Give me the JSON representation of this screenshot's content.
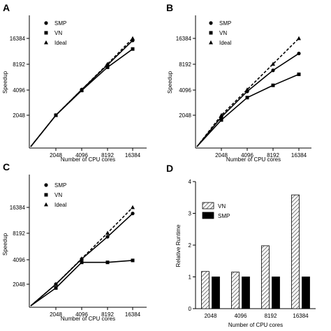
{
  "chart_data": [
    {
      "panel": "A",
      "type": "line",
      "x": [
        2048,
        4096,
        8192,
        16384
      ],
      "xtick_labels": [
        "2048",
        "4096",
        "8192",
        "16384"
      ],
      "ytick_values": [
        2048,
        4096,
        8192,
        16384
      ],
      "ytick_labels": [
        "2048",
        "4096",
        "8192",
        "16384"
      ],
      "xlabel": "Number of CPU cores",
      "ylabel": "Speedup",
      "log_scale": true,
      "legend_position": "top-left",
      "series": [
        {
          "name": "SMP",
          "marker": "circle",
          "dash": false,
          "values": [
            2048,
            4096,
            8000,
            15500
          ]
        },
        {
          "name": "VN",
          "marker": "square",
          "dash": false,
          "values": [
            2048,
            4000,
            7500,
            12300
          ]
        },
        {
          "name": "Ideal",
          "marker": "triangle",
          "dash": true,
          "values": [
            2048,
            4096,
            8192,
            16384
          ]
        }
      ]
    },
    {
      "panel": "B",
      "type": "line",
      "x": [
        2048,
        4096,
        8192,
        16384
      ],
      "xtick_labels": [
        "2048",
        "4096",
        "8192",
        "16384"
      ],
      "ytick_values": [
        2048,
        4096,
        8192,
        16384
      ],
      "ytick_labels": [
        "2048",
        "4096",
        "8192",
        "16384"
      ],
      "xlabel": "Number of CPU cores",
      "ylabel": "Speedup",
      "log_scale": true,
      "legend_position": "top-left",
      "series": [
        {
          "name": "SMP",
          "marker": "circle",
          "dash": false,
          "values": [
            1950,
            3900,
            6900,
            10900
          ]
        },
        {
          "name": "VN",
          "marker": "square",
          "dash": false,
          "values": [
            1800,
            3300,
            4600,
            6200
          ]
        },
        {
          "name": "Ideal",
          "marker": "triangle",
          "dash": true,
          "values": [
            2048,
            4096,
            8192,
            16384
          ]
        }
      ]
    },
    {
      "panel": "C",
      "type": "line",
      "x": [
        2048,
        4096,
        8192,
        16384
      ],
      "xtick_labels": [
        "2048",
        "4096",
        "8192",
        "16384"
      ],
      "ytick_values": [
        2048,
        4096,
        8192,
        16384
      ],
      "ytick_labels": [
        "2048",
        "4096",
        "8192",
        "16384"
      ],
      "xlabel": "Number of CPU cores",
      "ylabel": "Speedup",
      "log_scale": true,
      "legend_position": "top-left",
      "series": [
        {
          "name": "SMP",
          "marker": "circle",
          "dash": false,
          "values": [
            2048,
            4050,
            7400,
            13900
          ]
        },
        {
          "name": "VN",
          "marker": "square",
          "dash": false,
          "values": [
            1850,
            3700,
            3700,
            3900
          ]
        },
        {
          "name": "Ideal",
          "marker": "triangle",
          "dash": true,
          "values": [
            2048,
            4096,
            8192,
            16384
          ]
        }
      ]
    },
    {
      "panel": "D",
      "type": "bar",
      "categories": [
        "2048",
        "4096",
        "8192",
        "16384"
      ],
      "xlabel": "Number of CPU cores",
      "ylabel": "Relative Runtime",
      "ylim": [
        0,
        4
      ],
      "ytick_labels": [
        "0",
        "1",
        "2",
        "3",
        "4"
      ],
      "legend_position": "top-left",
      "series": [
        {
          "name": "VN",
          "pattern": "hatched",
          "values": [
            1.17,
            1.15,
            1.98,
            3.58
          ]
        },
        {
          "name": "SMP",
          "pattern": "solid",
          "color": "#000000",
          "values": [
            1.0,
            1.0,
            1.0,
            1.0
          ]
        }
      ]
    }
  ]
}
